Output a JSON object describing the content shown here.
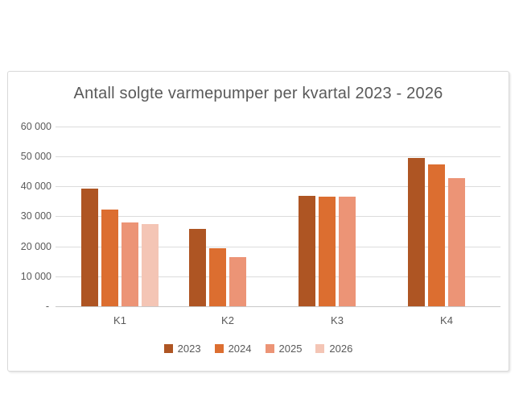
{
  "page": {
    "background": "#FFFFFF"
  },
  "chart_data": {
    "type": "bar",
    "title": "Antall solgte varmepumper per kvartal 2023 - 2026",
    "categories": [
      "K1",
      "K2",
      "K3",
      "K4"
    ],
    "series": [
      {
        "name": "2023",
        "color": "#AE5523",
        "values": [
          39300,
          25800,
          36800,
          49500
        ]
      },
      {
        "name": "2024",
        "color": "#DC6E30",
        "values": [
          32200,
          19200,
          36400,
          47300
        ]
      },
      {
        "name": "2025",
        "color": "#EC9476",
        "values": [
          27800,
          16400,
          36500,
          42700
        ]
      },
      {
        "name": "2026",
        "color": "#F4C5B5",
        "values": [
          27300,
          null,
          null,
          null
        ]
      }
    ],
    "ylim": [
      0,
      60000
    ],
    "ytick_step": 10000,
    "ytick_labels": [
      "-",
      "10 000",
      "20 000",
      "30 000",
      "40 000",
      "50 000",
      "60 000"
    ],
    "legend_position": "bottom",
    "grid": true,
    "notes": "missing values (null) leave an empty slot in the group"
  },
  "style": {
    "text_color": "#595959",
    "gridline_color": "#DCDCDC",
    "axis_color": "#C8C8C8",
    "panel_border_color": "#D9D9D9"
  }
}
